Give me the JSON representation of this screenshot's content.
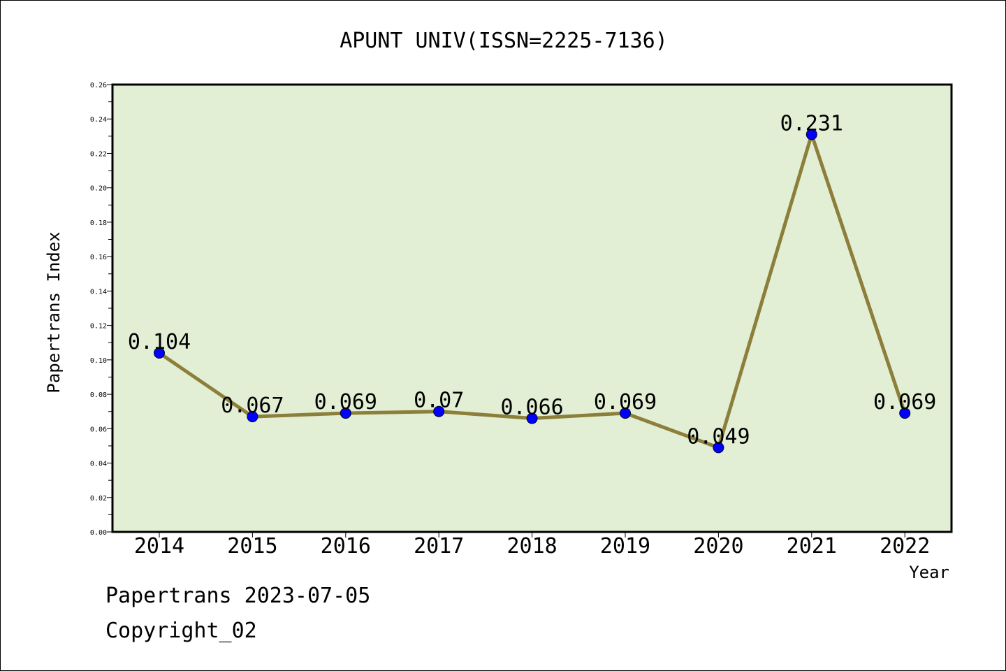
{
  "chart_data": {
    "type": "line",
    "title": "APUNT UNIV(ISSN=2225-7136)",
    "xlabel": "Year",
    "ylabel": "Papertrans Index",
    "categories": [
      "2014",
      "2015",
      "2016",
      "2017",
      "2018",
      "2019",
      "2020",
      "2021",
      "2022"
    ],
    "series": [
      {
        "values": [
          0.104,
          0.067,
          0.069,
          0.07,
          0.066,
          0.069,
          0.049,
          0.231,
          0.069
        ]
      }
    ],
    "data_labels": [
      "0.104",
      "0.067",
      "0.069",
      "0.07",
      "0.066",
      "0.069",
      "0.049",
      "0.231",
      "0.069"
    ],
    "ylim": [
      0,
      0.26
    ],
    "yticks": [
      "0.00",
      "0.02",
      "0.04",
      "0.06",
      "0.08",
      "0.10",
      "0.12",
      "0.14",
      "0.16",
      "0.18",
      "0.20",
      "0.22",
      "0.24",
      "0.26"
    ],
    "grid": false,
    "legend": "none",
    "colors": {
      "plot_background": "#e2efd4",
      "line": "#8b7f3a",
      "marker": "#0000ff"
    }
  },
  "footer": {
    "source": "Papertrans 2023-07-05",
    "copyright": "Copyright_02"
  }
}
